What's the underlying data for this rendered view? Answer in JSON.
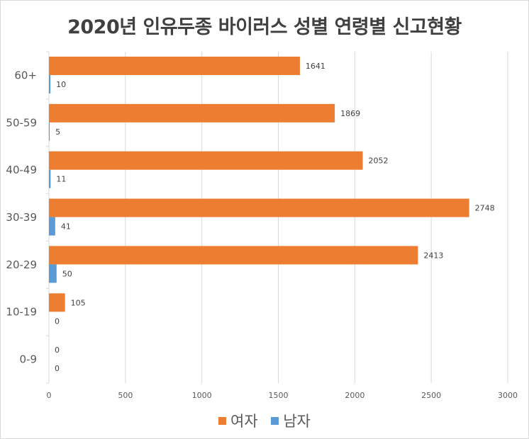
{
  "chart_data": {
    "type": "bar",
    "orientation": "horizontal",
    "title": "2020년 인유두종 바이러스 성별 연령별 신고현황",
    "categories": [
      "60+",
      "50-59",
      "40-49",
      "30-39",
      "20-29",
      "10-19",
      "0-9"
    ],
    "series": [
      {
        "name": "여자",
        "color": "#ed7d31",
        "values": [
          1641,
          1869,
          2052,
          2748,
          2413,
          105,
          0
        ]
      },
      {
        "name": "남자",
        "color": "#5b9bd5",
        "values": [
          10,
          5,
          11,
          41,
          50,
          0,
          0
        ]
      }
    ],
    "xlim": [
      0,
      3000
    ],
    "xticks": [
      0,
      500,
      1000,
      1500,
      2000,
      2500,
      3000
    ],
    "grid": true,
    "legend_position": "bottom"
  }
}
